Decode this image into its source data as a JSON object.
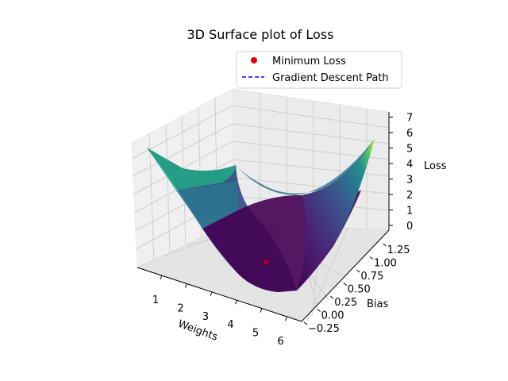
{
  "chart_data": {
    "type": "surface3d",
    "title": "3D Surface plot of Loss",
    "xlabel": "Weights",
    "ylabel": "Bias",
    "zlabel": "Loss",
    "xticks": [
      "1",
      "2",
      "3",
      "4",
      "5",
      "6"
    ],
    "yticks": [
      "−0.25",
      "0.00",
      "0.25",
      "0.50",
      "0.75",
      "1.00",
      "1.25"
    ],
    "zticks": [
      "0",
      "1",
      "2",
      "3",
      "4",
      "5",
      "6",
      "7"
    ],
    "xlim": [
      0.5,
      6.2
    ],
    "ylim": [
      -0.4,
      1.4
    ],
    "zlim": [
      -0.2,
      7.2
    ],
    "surface": {
      "colormap": "viridis",
      "description_values": {
        "corners": [
          {
            "weights": 0.5,
            "bias": 1.3,
            "loss": 5.0
          },
          {
            "weights": 0.5,
            "bias": -0.3,
            "loss": 2.8
          },
          {
            "weights": 6.0,
            "bias": 1.3,
            "loss": 5.5
          },
          {
            "weights": 6.0,
            "bias": -0.3,
            "loss": 3.8
          }
        ]
      }
    },
    "minimum": {
      "weights": 3.4,
      "bias": 0.5,
      "loss": 0.0,
      "color": "#e00000"
    },
    "legend": {
      "placement": "top-right",
      "entries": [
        {
          "label": "Minimum Loss",
          "marker": "dot",
          "color": "#e00000"
        },
        {
          "label": "Gradient Descent Path",
          "marker": "dashed-line",
          "color": "#0000ff"
        }
      ]
    },
    "grid": true
  }
}
